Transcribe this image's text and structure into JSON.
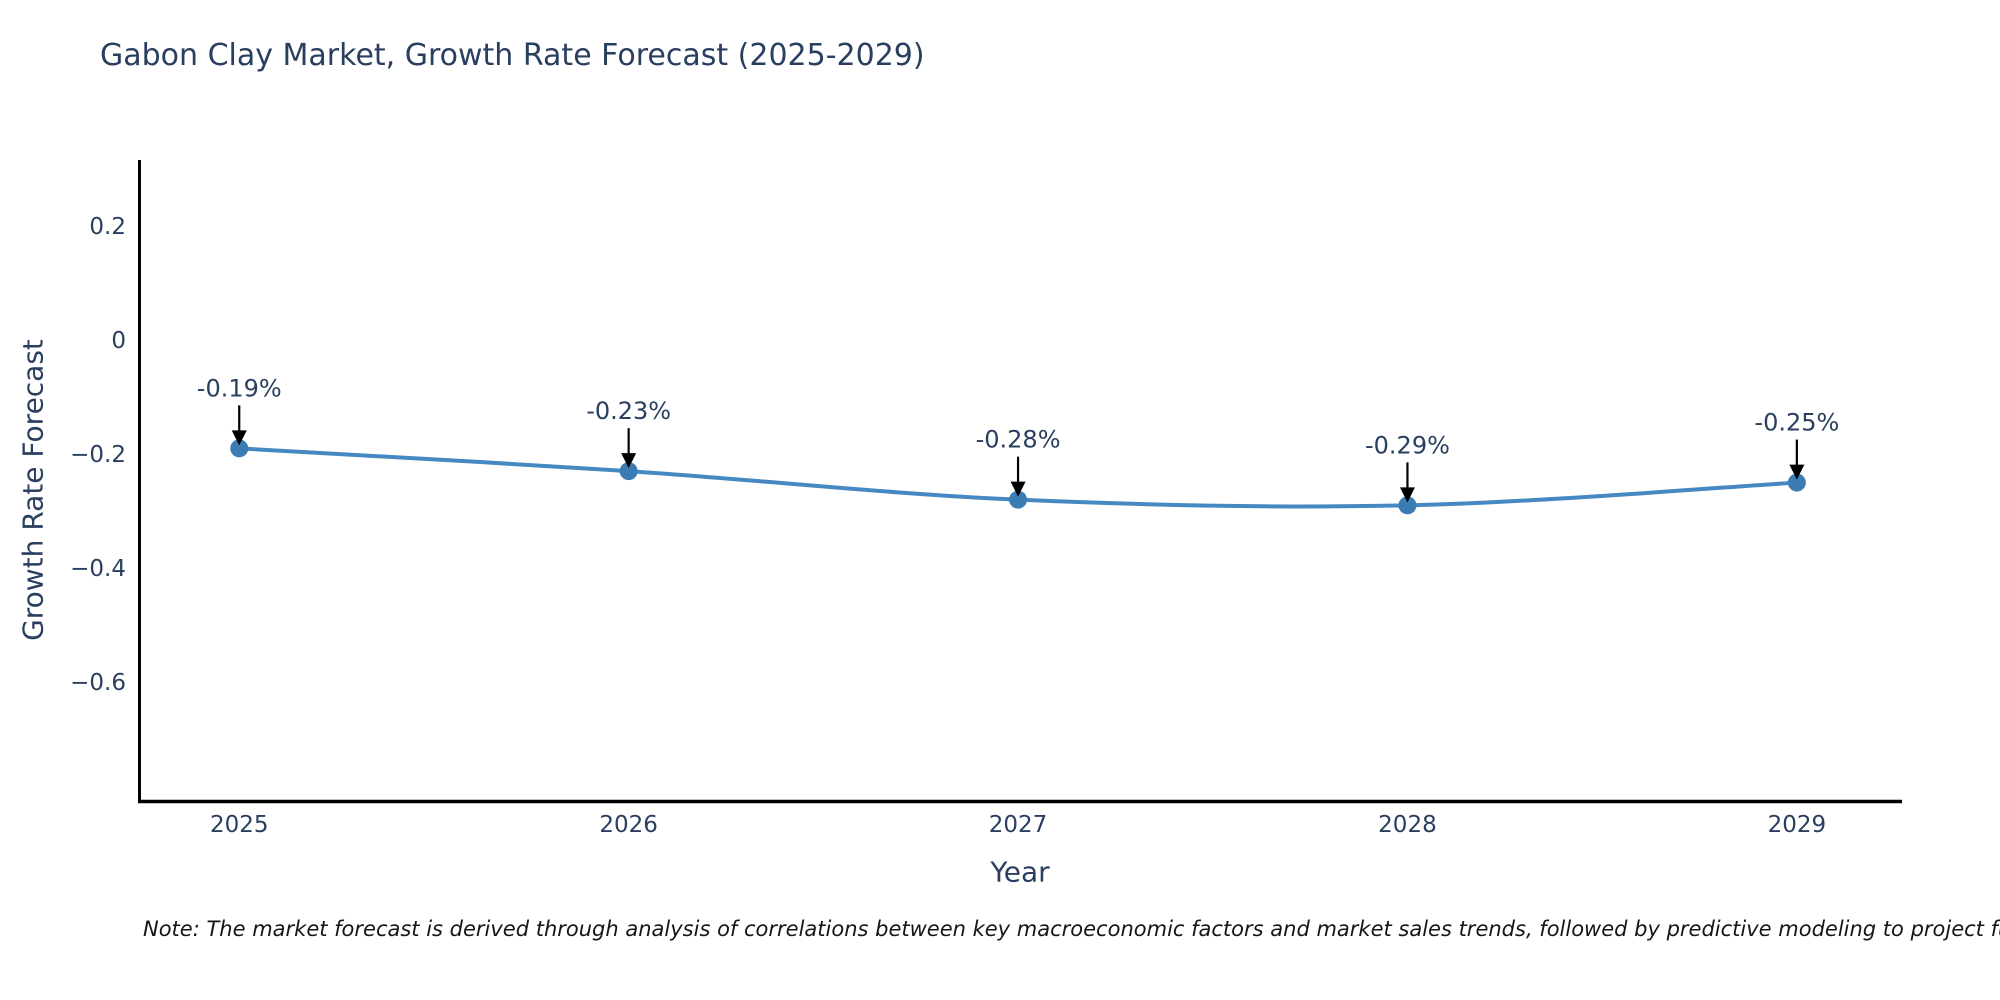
{
  "page": {
    "background": "#ffffff"
  },
  "chart_data": {
    "type": "line",
    "title": "Gabon Clay Market, Growth Rate Forecast (2025-2029)",
    "xlabel": "Year",
    "ylabel": "Growth Rate Forecast",
    "x": [
      2025,
      2026,
      2027,
      2028,
      2029
    ],
    "series": [
      {
        "name": "Growth Rate Forecast",
        "values": [
          -0.19,
          -0.23,
          -0.28,
          -0.29,
          -0.25
        ]
      }
    ],
    "point_labels": [
      "-0.19%",
      "-0.23%",
      "-0.28%",
      "-0.29%",
      "-0.25%"
    ],
    "x_tick_labels": [
      "2025",
      "2026",
      "2027",
      "2028",
      "2029"
    ],
    "y_ticks": [
      0.2,
      0,
      -0.2,
      -0.4,
      -0.6
    ],
    "y_tick_labels": [
      "0.2",
      "0",
      "−0.2",
      "−0.4",
      "−0.6"
    ],
    "x_range": [
      2024.74,
      2029.27
    ],
    "y_range": [
      -0.807,
      0.316
    ],
    "grid": false,
    "legend": "none",
    "line_shape": "spline",
    "colors": {
      "line": "#4688c2",
      "marker": "#3c7cb5",
      "axis": "#000000",
      "text": "#2a3f5f",
      "annotation_text": "#2a3f5f",
      "annotation_arrow": "#000000",
      "note_text": "#161616",
      "background": "#ffffff"
    },
    "note": "Note: The market forecast is derived through analysis of correlations between key macroeconomic factors and market sales trends, followed by predictive modeling to project future sa"
  }
}
